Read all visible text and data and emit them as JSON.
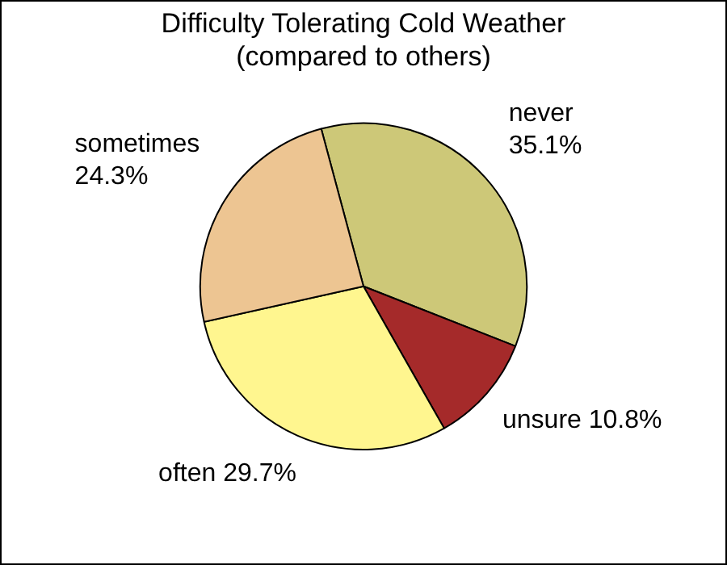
{
  "chart_data": {
    "type": "pie",
    "title": "Difficulty Tolerating Cold Weather",
    "subtitle": "(compared to others)",
    "categories": [
      "never",
      "unsure",
      "often",
      "sometimes"
    ],
    "values": [
      35.1,
      10.8,
      29.7,
      24.3
    ],
    "value_labels": [
      "35.1%",
      "10.8%",
      "29.7%",
      "24.3%"
    ],
    "colors": [
      "#cdc878",
      "#a52a2a",
      "#fff68f",
      "#edc592"
    ],
    "legend": false
  }
}
